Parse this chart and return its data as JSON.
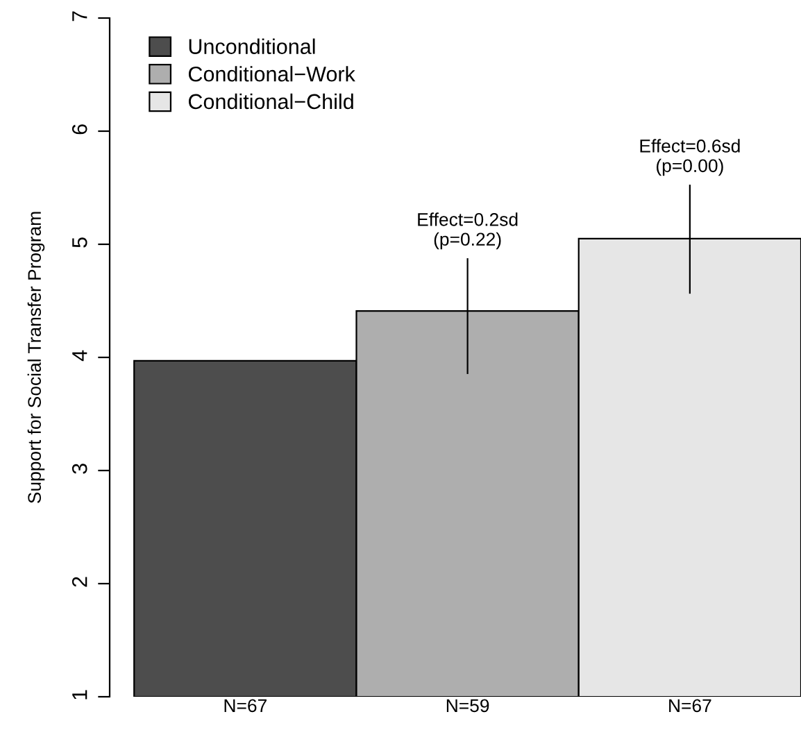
{
  "chart_data": {
    "type": "bar",
    "ylabel": "Support for Social Transfer Program",
    "categories": [
      "N=67",
      "N=59",
      "N=67"
    ],
    "series": [
      {
        "name": "Unconditional",
        "color": "#4d4d4d",
        "values": [
          3.97,
          null,
          null
        ]
      },
      {
        "name": "Conditional−Work",
        "color": "#aeaeae",
        "values": [
          null,
          4.41,
          null
        ],
        "errors": [
          null,
          [
            3.86,
            4.87
          ],
          null
        ]
      },
      {
        "name": "Conditional−Child",
        "color": "#e6e6e6",
        "values": [
          null,
          null,
          5.05
        ],
        "errors": [
          null,
          null,
          [
            4.57,
            5.52
          ]
        ]
      }
    ],
    "annotations": [
      "Effect=0.2sd\n(p=0.22)",
      "Effect=0.6sd\n(p=0.00)"
    ],
    "ylim": [
      1,
      7
    ],
    "yticks": [
      1,
      2,
      3,
      4,
      5,
      6,
      7
    ],
    "grid": false,
    "legend": "top left"
  }
}
